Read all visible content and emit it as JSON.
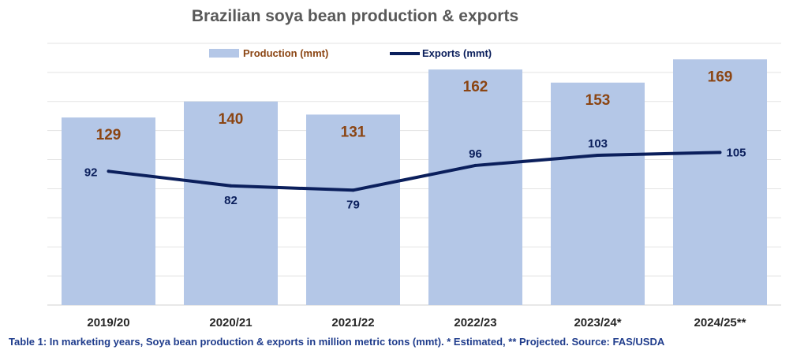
{
  "chart_data": {
    "type": "bar",
    "title": "Brazilian soya bean production & exports",
    "categories": [
      "2019/20",
      "2020/21",
      "2021/22",
      "2022/23",
      "2023/24*",
      "2024/25**"
    ],
    "series": [
      {
        "name": "Production (mmt)",
        "type": "bar",
        "values": [
          129,
          140,
          131,
          162,
          153,
          169
        ]
      },
      {
        "name": "Exports (mmt)",
        "type": "line",
        "values": [
          92,
          82,
          79,
          96,
          103,
          105
        ]
      }
    ],
    "ylim": [
      0,
      180
    ],
    "grid": true,
    "legend": "top-center",
    "xlabel": "",
    "ylabel": ""
  },
  "colors": {
    "bar": "#b4c7e7",
    "line": "#0b1f5c",
    "bar_label": "#8B4513",
    "line_label": "#0b1f5c"
  },
  "caption": "Table 1: In marketing years, Soya bean production & exports in million metric tons (mmt). * Estimated, ** Projected. Source: FAS/USDA"
}
